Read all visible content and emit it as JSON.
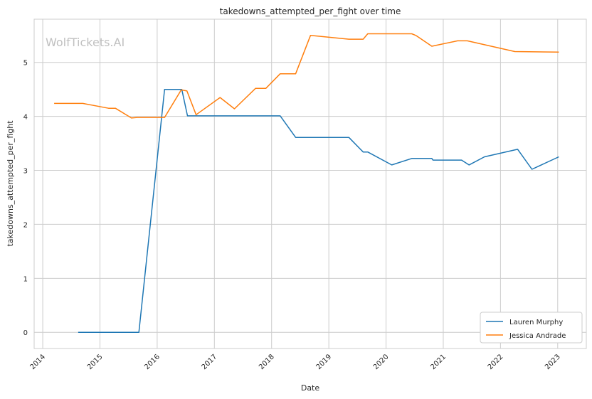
{
  "chart_data": {
    "type": "line",
    "title": "takedowns_attempted_per_fight over time",
    "xlabel": "Date",
    "ylabel": "takedowns_attempted_per_fight",
    "watermark": "WolfTickets.AI",
    "xlim": [
      2013.85,
      2023.5
    ],
    "ylim": [
      -0.3,
      5.8
    ],
    "xticks": [
      2014,
      2015,
      2016,
      2017,
      2018,
      2019,
      2020,
      2021,
      2022,
      2023
    ],
    "xtick_labels": [
      "2014",
      "2015",
      "2016",
      "2017",
      "2018",
      "2019",
      "2020",
      "2021",
      "2022",
      "2023"
    ],
    "yticks": [
      0,
      1,
      2,
      3,
      4,
      5
    ],
    "ytick_labels": [
      "0",
      "1",
      "2",
      "3",
      "4",
      "5"
    ],
    "grid": true,
    "legend_position": "lower-right",
    "series": [
      {
        "name": "Lauren Murphy",
        "color": "#1f77b4",
        "points": [
          [
            2014.62,
            0
          ],
          [
            2015.68,
            0
          ],
          [
            2016.13,
            4.5
          ],
          [
            2016.43,
            4.5
          ],
          [
            2016.53,
            4.01
          ],
          [
            2017.0,
            4.01
          ],
          [
            2017.8,
            4.01
          ],
          [
            2018.15,
            4.01
          ],
          [
            2018.42,
            3.61
          ],
          [
            2019.35,
            3.61
          ],
          [
            2019.6,
            3.34
          ],
          [
            2019.68,
            3.34
          ],
          [
            2020.1,
            3.1
          ],
          [
            2020.45,
            3.22
          ],
          [
            2020.8,
            3.22
          ],
          [
            2020.82,
            3.19
          ],
          [
            2021.32,
            3.19
          ],
          [
            2021.45,
            3.1
          ],
          [
            2021.72,
            3.25
          ],
          [
            2022.3,
            3.39
          ],
          [
            2022.55,
            3.02
          ],
          [
            2023.02,
            3.25
          ]
        ]
      },
      {
        "name": "Jessica Andrade",
        "color": "#ff7f0e",
        "points": [
          [
            2014.2,
            4.24
          ],
          [
            2014.7,
            4.24
          ],
          [
            2015.15,
            4.15
          ],
          [
            2015.27,
            4.15
          ],
          [
            2015.55,
            3.97
          ],
          [
            2015.65,
            3.98
          ],
          [
            2016.13,
            3.98
          ],
          [
            2016.42,
            4.49
          ],
          [
            2016.52,
            4.47
          ],
          [
            2016.68,
            4.03
          ],
          [
            2017.1,
            4.35
          ],
          [
            2017.35,
            4.14
          ],
          [
            2017.72,
            4.52
          ],
          [
            2017.9,
            4.52
          ],
          [
            2018.15,
            4.79
          ],
          [
            2018.42,
            4.79
          ],
          [
            2018.68,
            5.5
          ],
          [
            2019.35,
            5.43
          ],
          [
            2019.6,
            5.43
          ],
          [
            2019.68,
            5.53
          ],
          [
            2020.45,
            5.53
          ],
          [
            2020.52,
            5.5
          ],
          [
            2020.8,
            5.3
          ],
          [
            2021.25,
            5.4
          ],
          [
            2021.42,
            5.4
          ],
          [
            2022.25,
            5.2
          ],
          [
            2023.02,
            5.19
          ]
        ]
      }
    ]
  }
}
